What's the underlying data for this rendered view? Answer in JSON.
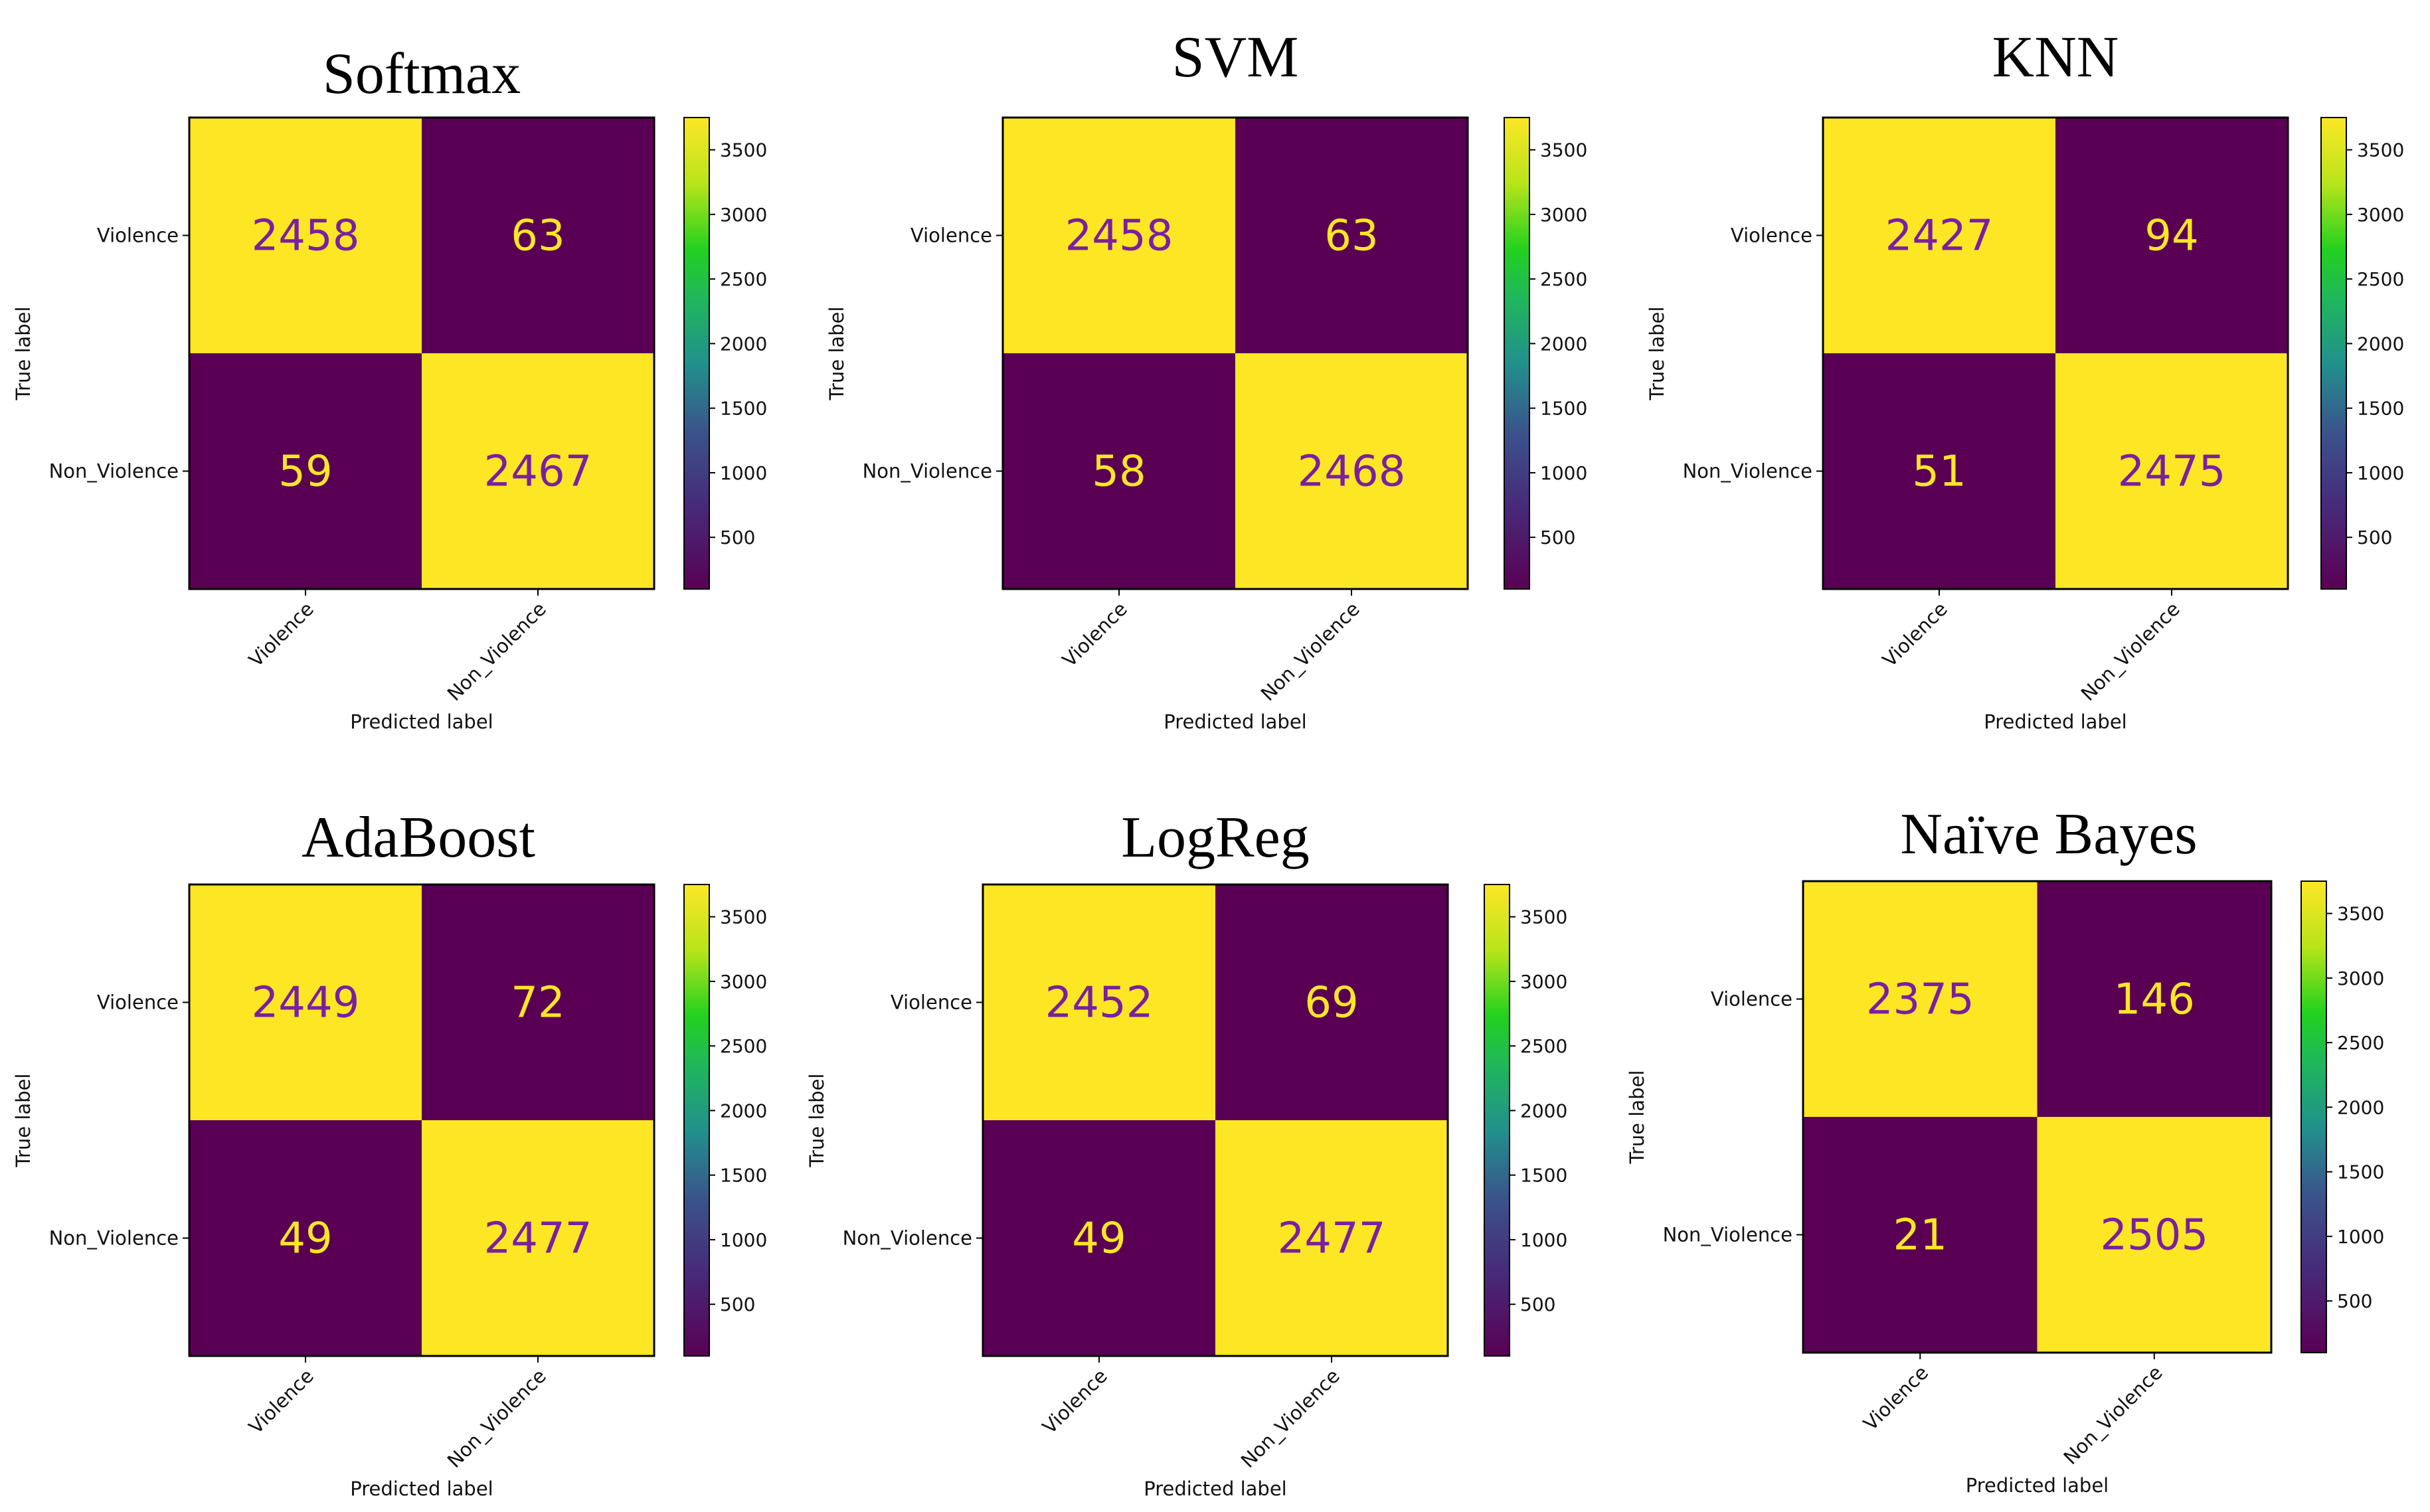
{
  "chart_data": [
    {
      "type": "heatmap",
      "title": "Softmax",
      "xlabel": "Predicted label",
      "ylabel": "True label",
      "x_categories": [
        "Violence",
        "Non_Violence"
      ],
      "y_categories": [
        "Violence",
        "Non_Violence"
      ],
      "values": [
        [
          2458,
          63
        ],
        [
          59,
          2467
        ]
      ],
      "colorbar_ticks": [
        500,
        1000,
        1500,
        2000,
        2500,
        3000,
        3500
      ],
      "colorbar_range": [
        100,
        3750
      ],
      "colormap": "viridis"
    },
    {
      "type": "heatmap",
      "title": "SVM",
      "xlabel": "Predicted label",
      "ylabel": "True label",
      "x_categories": [
        "Violence",
        "Non_Violence"
      ],
      "y_categories": [
        "Violence",
        "Non_Violence"
      ],
      "values": [
        [
          2458,
          63
        ],
        [
          58,
          2468
        ]
      ],
      "colorbar_ticks": [
        500,
        1000,
        1500,
        2000,
        2500,
        3000,
        3500
      ],
      "colorbar_range": [
        100,
        3750
      ],
      "colormap": "viridis"
    },
    {
      "type": "heatmap",
      "title": "KNN",
      "xlabel": "Predicted label",
      "ylabel": "True label",
      "x_categories": [
        "Violence",
        "Non_Violence"
      ],
      "y_categories": [
        "Violence",
        "Non_Violence"
      ],
      "values": [
        [
          2427,
          94
        ],
        [
          51,
          2475
        ]
      ],
      "colorbar_ticks": [
        500,
        1000,
        1500,
        2000,
        2500,
        3000,
        3500
      ],
      "colorbar_range": [
        100,
        3750
      ],
      "colormap": "viridis"
    },
    {
      "type": "heatmap",
      "title": "AdaBoost",
      "xlabel": "Predicted label",
      "ylabel": "True label",
      "x_categories": [
        "Violence",
        "Non_Violence"
      ],
      "y_categories": [
        "Violence",
        "Non_Violence"
      ],
      "values": [
        [
          2449,
          72
        ],
        [
          49,
          2477
        ]
      ],
      "colorbar_ticks": [
        500,
        1000,
        1500,
        2000,
        2500,
        3000,
        3500
      ],
      "colorbar_range": [
        100,
        3750
      ],
      "colormap": "viridis"
    },
    {
      "type": "heatmap",
      "title": "LogReg",
      "xlabel": "Predicted label",
      "ylabel": "True label",
      "x_categories": [
        "Violence",
        "Non_Violence"
      ],
      "y_categories": [
        "Violence",
        "Non_Violence"
      ],
      "values": [
        [
          2452,
          69
        ],
        [
          49,
          2477
        ]
      ],
      "colorbar_ticks": [
        500,
        1000,
        1500,
        2000,
        2500,
        3000,
        3500
      ],
      "colorbar_range": [
        100,
        3750
      ],
      "colormap": "viridis"
    },
    {
      "type": "heatmap",
      "title": "Naïve Bayes",
      "xlabel": "Predicted label",
      "ylabel": "True label",
      "x_categories": [
        "Violence",
        "Non_Violence"
      ],
      "y_categories": [
        "Violence",
        "Non_Violence"
      ],
      "values": [
        [
          2375,
          146
        ],
        [
          21,
          2505
        ]
      ],
      "colorbar_ticks": [
        500,
        1000,
        1500,
        2000,
        2500,
        3000,
        3500
      ],
      "colorbar_range": [
        100,
        3750
      ],
      "colormap": "viridis"
    }
  ],
  "colors": {
    "high_cell": "#FDE725",
    "low_cell": "#5A0054",
    "text_on_high": "#7A1FA2",
    "text_on_low": "#FDE725",
    "frame": "#000000"
  }
}
